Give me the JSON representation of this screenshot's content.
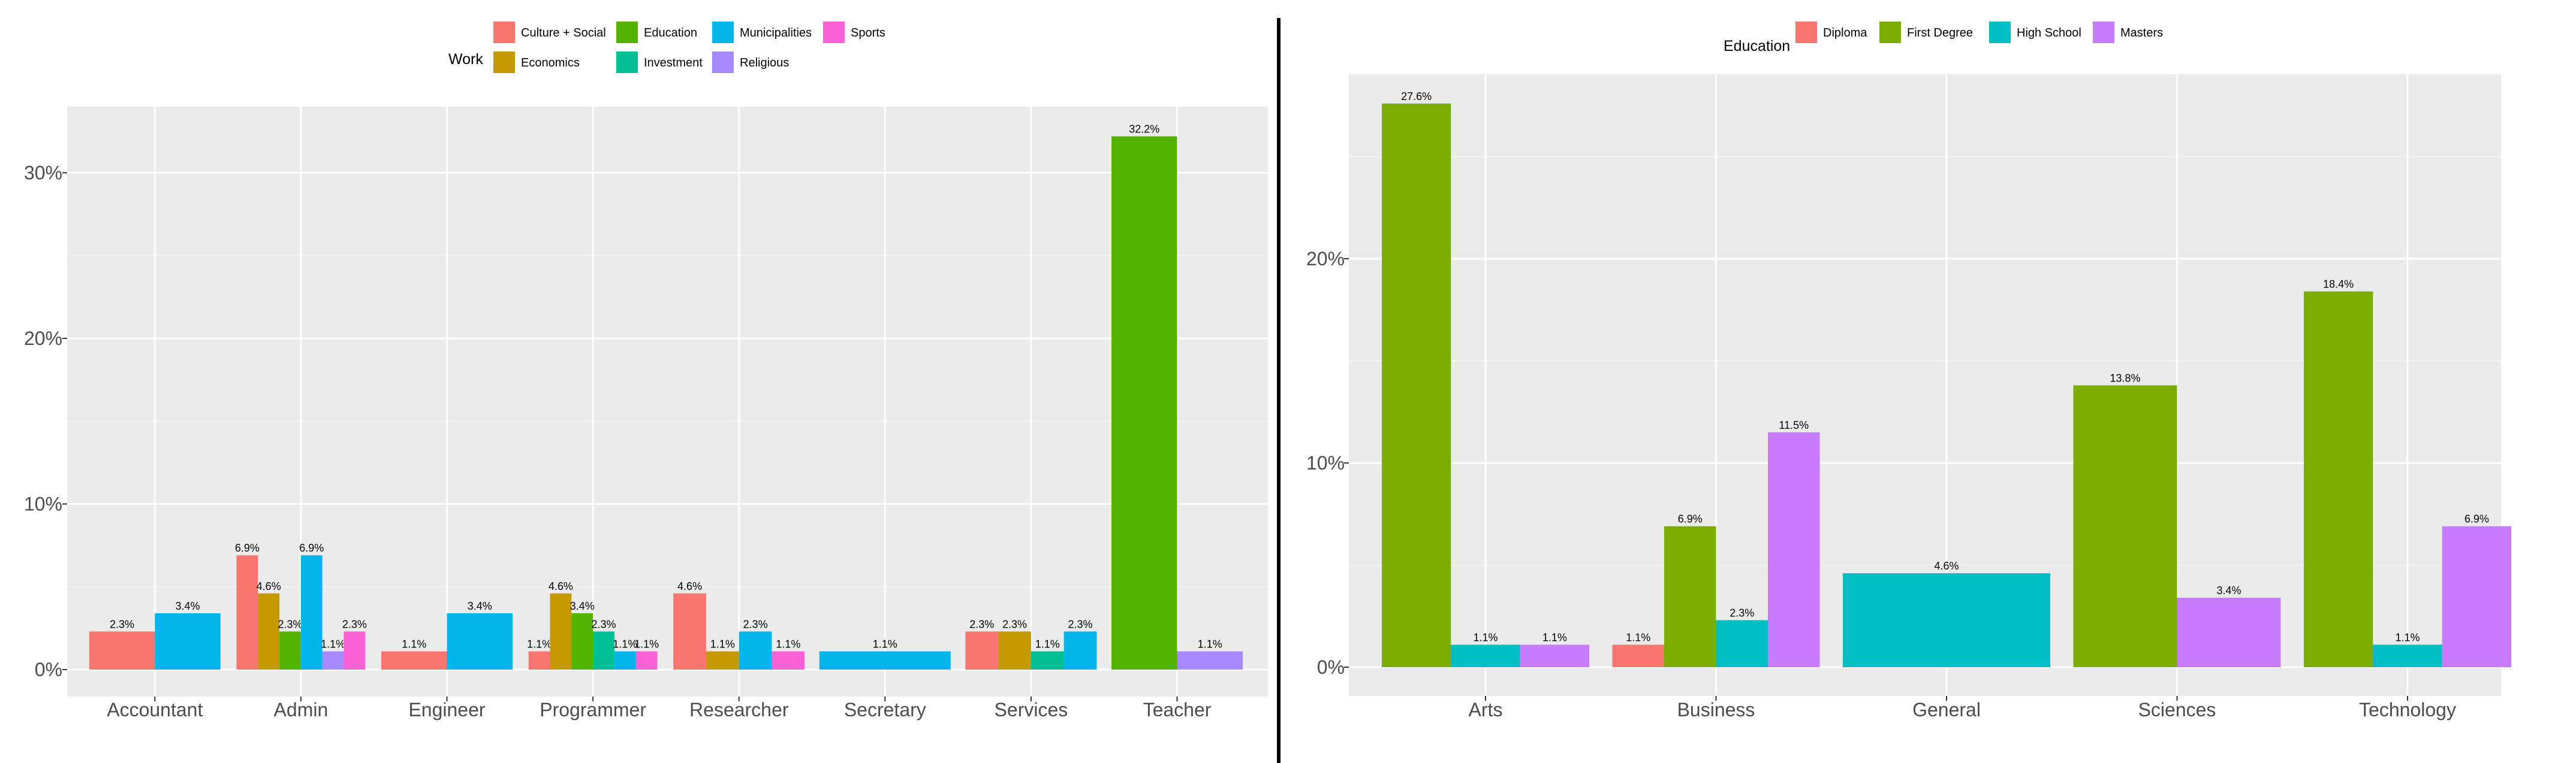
{
  "chart_data": [
    {
      "type": "bar",
      "legend": {
        "title": "Work",
        "entries": [
          {
            "name": "Culture + Social",
            "color": "#F8766D"
          },
          {
            "name": "Economics",
            "color": "#C49A00"
          },
          {
            "name": "Education",
            "color": "#53B400"
          },
          {
            "name": "Investment",
            "color": "#00C094"
          },
          {
            "name": "Municipalities",
            "color": "#00B6EB"
          },
          {
            "name": "Religious",
            "color": "#A58AFF"
          },
          {
            "name": "Sports",
            "color": "#FB61D7"
          }
        ],
        "placement": "top"
      },
      "yticks": [
        "0%",
        "10%",
        "20%",
        "30%"
      ],
      "ylim": [
        0,
        33.8
      ],
      "grid": true,
      "groups": [
        {
          "category": "Accountant",
          "bars": [
            {
              "series": "Culture + Social",
              "value": 2.3,
              "label": "2.3%"
            },
            {
              "series": "Municipalities",
              "value": 3.4,
              "label": "3.4%"
            }
          ]
        },
        {
          "category": "Admin",
          "bars": [
            {
              "series": "Culture + Social",
              "value": 6.9,
              "label": "6.9%"
            },
            {
              "series": "Economics",
              "value": 4.6,
              "label": "4.6%"
            },
            {
              "series": "Education",
              "value": 2.3,
              "label": "2.3%"
            },
            {
              "series": "Municipalities",
              "value": 6.9,
              "label": "6.9%"
            },
            {
              "series": "Religious",
              "value": 1.1,
              "label": "1.1%"
            },
            {
              "series": "Sports",
              "value": 2.3,
              "label": "2.3%"
            }
          ]
        },
        {
          "category": "Engineer",
          "bars": [
            {
              "series": "Culture + Social",
              "value": 1.1,
              "label": "1.1%"
            },
            {
              "series": "Municipalities",
              "value": 3.4,
              "label": "3.4%"
            }
          ]
        },
        {
          "category": "Programmer",
          "bars": [
            {
              "series": "Culture + Social",
              "value": 1.1,
              "label": "1.1%"
            },
            {
              "series": "Economics",
              "value": 4.6,
              "label": "4.6%"
            },
            {
              "series": "Education",
              "value": 3.4,
              "label": "3.4%"
            },
            {
              "series": "Investment",
              "value": 2.3,
              "label": "2.3%"
            },
            {
              "series": "Municipalities",
              "value": 1.1,
              "label": "1.1%"
            },
            {
              "series": "Sports",
              "value": 1.1,
              "label": "1.1%"
            }
          ]
        },
        {
          "category": "Researcher",
          "bars": [
            {
              "series": "Culture + Social",
              "value": 4.6,
              "label": "4.6%"
            },
            {
              "series": "Economics",
              "value": 1.1,
              "label": "1.1%"
            },
            {
              "series": "Municipalities",
              "value": 2.3,
              "label": "2.3%"
            },
            {
              "series": "Sports",
              "value": 1.1,
              "label": "1.1%"
            }
          ]
        },
        {
          "category": "Secretary",
          "bars": [
            {
              "series": "Municipalities",
              "value": 1.1,
              "label": "1.1%"
            }
          ]
        },
        {
          "category": "Services",
          "bars": [
            {
              "series": "Culture + Social",
              "value": 2.3,
              "label": "2.3%"
            },
            {
              "series": "Economics",
              "value": 2.3,
              "label": "2.3%"
            },
            {
              "series": "Investment",
              "value": 1.1,
              "label": "1.1%"
            },
            {
              "series": "Municipalities",
              "value": 2.3,
              "label": "2.3%"
            }
          ]
        },
        {
          "category": "Teacher",
          "bars": [
            {
              "series": "Education",
              "value": 32.2,
              "label": "32.2%"
            },
            {
              "series": "Religious",
              "value": 1.1,
              "label": "1.1%"
            }
          ]
        }
      ]
    },
    {
      "type": "bar",
      "legend": {
        "title": "Education",
        "entries": [
          {
            "name": "Diploma",
            "color": "#F8766D"
          },
          {
            "name": "First Degree",
            "color": "#7CAE00"
          },
          {
            "name": "High School",
            "color": "#00BFC4"
          },
          {
            "name": "Masters",
            "color": "#C77CFF"
          }
        ],
        "placement": "top"
      },
      "yticks": [
        "0%",
        "10%",
        "20%"
      ],
      "ylim": [
        0,
        29.0
      ],
      "grid": true,
      "groups": [
        {
          "category": "Arts",
          "bars": [
            {
              "series": "First Degree",
              "value": 27.6,
              "label": "27.6%"
            },
            {
              "series": "High School",
              "value": 1.1,
              "label": "1.1%"
            },
            {
              "series": "Masters",
              "value": 1.1,
              "label": "1.1%"
            }
          ]
        },
        {
          "category": "Business",
          "bars": [
            {
              "series": "Diploma",
              "value": 1.1,
              "label": "1.1%"
            },
            {
              "series": "First Degree",
              "value": 6.9,
              "label": "6.9%"
            },
            {
              "series": "High School",
              "value": 2.3,
              "label": "2.3%"
            },
            {
              "series": "Masters",
              "value": 11.5,
              "label": "11.5%"
            }
          ]
        },
        {
          "category": "General",
          "bars": [
            {
              "series": "High School",
              "value": 4.6,
              "label": "4.6%"
            }
          ]
        },
        {
          "category": "Sciences",
          "bars": [
            {
              "series": "First Degree",
              "value": 13.8,
              "label": "13.8%"
            },
            {
              "series": "Masters",
              "value": 3.4,
              "label": "3.4%"
            }
          ]
        },
        {
          "category": "Technology",
          "bars": [
            {
              "series": "First Degree",
              "value": 18.4,
              "label": "18.4%"
            },
            {
              "series": "High School",
              "value": 1.1,
              "label": "1.1%"
            },
            {
              "series": "Masters",
              "value": 6.9,
              "label": "6.9%"
            }
          ]
        }
      ]
    }
  ]
}
